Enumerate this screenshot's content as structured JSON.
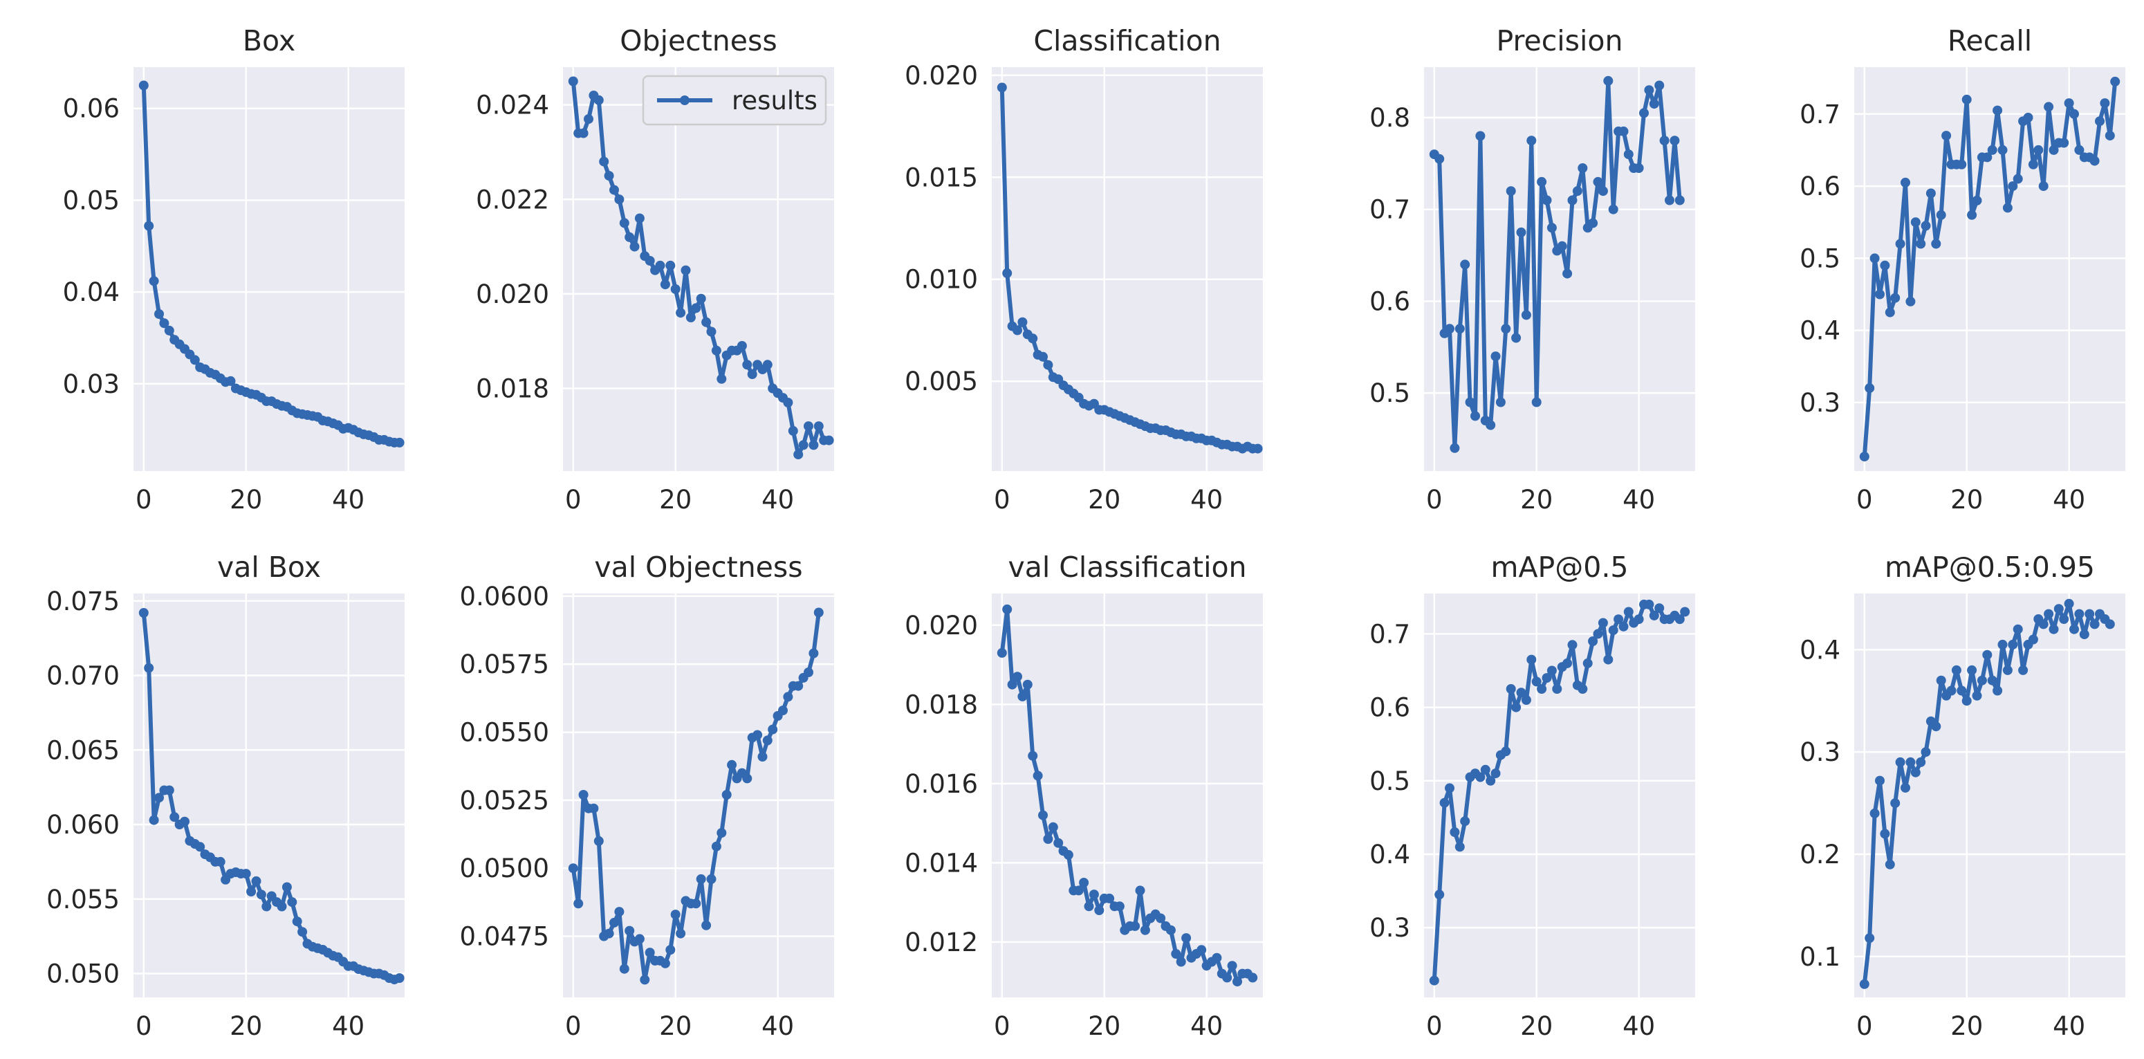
{
  "style": {
    "series_color": "#3369b0",
    "panel_bg": "#eaeaf2",
    "grid_color": "#ffffff",
    "text_color": "#262626"
  },
  "legend": {
    "label": "results",
    "placement": "upper-right of Objectness panel"
  },
  "chart_data": [
    {
      "type": "line",
      "title": "Box",
      "grid": true,
      "xlim": [
        -2,
        51
      ],
      "ylim": [
        0.0205,
        0.0645
      ],
      "xticks": [
        0,
        20,
        40
      ],
      "yticks": [
        0.03,
        0.04,
        0.05,
        0.06
      ],
      "ytick_labels": [
        "0.03",
        "0.04",
        "0.05",
        "0.06"
      ],
      "series": [
        {
          "values": [
            0.0625,
            0.0472,
            0.0412,
            0.0376,
            0.0366,
            0.0358,
            0.0348,
            0.0343,
            0.0338,
            0.0332,
            0.0326,
            0.0318,
            0.0316,
            0.0312,
            0.031,
            0.0306,
            0.0302,
            0.0303,
            0.0295,
            0.0293,
            0.0291,
            0.0289,
            0.0288,
            0.0285,
            0.0281,
            0.0281,
            0.0278,
            0.0276,
            0.0275,
            0.0271,
            0.0268,
            0.0267,
            0.0266,
            0.0265,
            0.0264,
            0.026,
            0.0259,
            0.0257,
            0.0255,
            0.0251,
            0.0252,
            0.025,
            0.0247,
            0.0245,
            0.0244,
            0.0242,
            0.0239,
            0.0239,
            0.0237,
            0.0236,
            0.0236
          ]
        }
      ]
    },
    {
      "type": "line",
      "title": "Objectness",
      "grid": true,
      "legend": true,
      "xlim": [
        -2,
        51
      ],
      "ylim": [
        0.01625,
        0.0248
      ],
      "xticks": [
        0,
        20,
        40
      ],
      "yticks": [
        0.018,
        0.02,
        0.022,
        0.024
      ],
      "ytick_labels": [
        "0.018",
        "0.020",
        "0.022",
        "0.024"
      ],
      "series": [
        {
          "values": [
            0.0245,
            0.0234,
            0.0234,
            0.0237,
            0.0242,
            0.0241,
            0.0228,
            0.0225,
            0.0222,
            0.022,
            0.0215,
            0.0212,
            0.021,
            0.0216,
            0.0208,
            0.0207,
            0.0205,
            0.0206,
            0.0202,
            0.0206,
            0.0201,
            0.0196,
            0.0205,
            0.0195,
            0.0197,
            0.0199,
            0.0194,
            0.0192,
            0.0188,
            0.0182,
            0.0187,
            0.0188,
            0.0188,
            0.0189,
            0.0185,
            0.0183,
            0.0185,
            0.0184,
            0.0185,
            0.018,
            0.0179,
            0.0178,
            0.0177,
            0.0171,
            0.0166,
            0.0168,
            0.0172,
            0.0168,
            0.0172,
            0.0169,
            0.0169
          ]
        }
      ]
    },
    {
      "type": "line",
      "title": "Classification",
      "grid": true,
      "xlim": [
        -2,
        51
      ],
      "ylim": [
        0.0006,
        0.0204
      ],
      "xticks": [
        0,
        20,
        40
      ],
      "yticks": [
        0.005,
        0.01,
        0.015,
        0.02
      ],
      "ytick_labels": [
        "0.005",
        "0.010",
        "0.015",
        "0.020"
      ],
      "series": [
        {
          "values": [
            0.0194,
            0.0103,
            0.0077,
            0.0075,
            0.0079,
            0.0073,
            0.0071,
            0.0063,
            0.0062,
            0.0058,
            0.0052,
            0.0051,
            0.0048,
            0.0046,
            0.0044,
            0.0042,
            0.0039,
            0.0038,
            0.0039,
            0.0036,
            0.0036,
            0.0035,
            0.0034,
            0.0033,
            0.0032,
            0.0031,
            0.003,
            0.0029,
            0.0028,
            0.0027,
            0.0027,
            0.0026,
            0.0026,
            0.0025,
            0.0024,
            0.0024,
            0.0023,
            0.0023,
            0.0022,
            0.0022,
            0.0021,
            0.0021,
            0.002,
            0.0019,
            0.0019,
            0.0018,
            0.0018,
            0.0017,
            0.0018,
            0.0017,
            0.0017
          ]
        }
      ]
    },
    {
      "type": "line",
      "title": "Precision",
      "grid": true,
      "xlim": [
        -2,
        51
      ],
      "ylim": [
        0.415,
        0.855
      ],
      "xticks": [
        0,
        20,
        40
      ],
      "yticks": [
        0.5,
        0.6,
        0.7,
        0.8
      ],
      "ytick_labels": [
        "0.5",
        "0.6",
        "0.7",
        "0.8"
      ],
      "series": [
        {
          "values": [
            0.76,
            0.755,
            0.565,
            0.57,
            0.44,
            0.57,
            0.64,
            0.49,
            0.475,
            0.78,
            0.47,
            0.465,
            0.54,
            0.49,
            0.57,
            0.72,
            0.56,
            0.675,
            0.585,
            0.775,
            0.49,
            0.73,
            0.71,
            0.68,
            0.655,
            0.66,
            0.63,
            0.71,
            0.72,
            0.745,
            0.68,
            0.685,
            0.73,
            0.72,
            0.84,
            0.7,
            0.785,
            0.785,
            0.76,
            0.745,
            0.745,
            0.805,
            0.83,
            0.815,
            0.835,
            0.775,
            0.71,
            0.775,
            0.71
          ]
        }
      ]
    },
    {
      "type": "line",
      "title": "Recall",
      "grid": true,
      "xlim": [
        -2,
        51
      ],
      "ylim": [
        0.205,
        0.765
      ],
      "xticks": [
        0,
        20,
        40
      ],
      "yticks": [
        0.3,
        0.4,
        0.5,
        0.6,
        0.7
      ],
      "ytick_labels": [
        "0.3",
        "0.4",
        "0.5",
        "0.6",
        "0.7"
      ],
      "series": [
        {
          "values": [
            0.225,
            0.32,
            0.5,
            0.45,
            0.49,
            0.425,
            0.445,
            0.52,
            0.605,
            0.44,
            0.55,
            0.52,
            0.545,
            0.59,
            0.52,
            0.56,
            0.67,
            0.63,
            0.63,
            0.63,
            0.72,
            0.56,
            0.58,
            0.64,
            0.64,
            0.65,
            0.705,
            0.65,
            0.57,
            0.6,
            0.61,
            0.69,
            0.695,
            0.63,
            0.65,
            0.6,
            0.71,
            0.65,
            0.66,
            0.66,
            0.715,
            0.7,
            0.65,
            0.64,
            0.64,
            0.635,
            0.69,
            0.715,
            0.67,
            0.745
          ]
        }
      ]
    },
    {
      "type": "line",
      "title": "val Box",
      "grid": true,
      "xlim": [
        -2,
        51
      ],
      "ylim": [
        0.0484,
        0.0755
      ],
      "xticks": [
        0,
        20,
        40
      ],
      "yticks": [
        0.05,
        0.055,
        0.06,
        0.065,
        0.07,
        0.075
      ],
      "ytick_labels": [
        "0.050",
        "0.055",
        "0.060",
        "0.065",
        "0.070",
        "0.075"
      ],
      "series": [
        {
          "values": [
            0.0742,
            0.0705,
            0.0603,
            0.0618,
            0.0623,
            0.0623,
            0.0605,
            0.06,
            0.0602,
            0.0589,
            0.0587,
            0.0585,
            0.058,
            0.0578,
            0.0575,
            0.0575,
            0.0563,
            0.0567,
            0.0568,
            0.0567,
            0.0567,
            0.0555,
            0.0562,
            0.0553,
            0.0545,
            0.0552,
            0.0548,
            0.0545,
            0.0558,
            0.0548,
            0.0535,
            0.0528,
            0.052,
            0.0518,
            0.0517,
            0.0516,
            0.0514,
            0.0512,
            0.0511,
            0.0508,
            0.0505,
            0.0505,
            0.0503,
            0.0502,
            0.0501,
            0.05,
            0.05,
            0.0499,
            0.0497,
            0.0496,
            0.0497
          ]
        }
      ]
    },
    {
      "type": "line",
      "title": "val Objectness",
      "grid": true,
      "xlim": [
        -2,
        51
      ],
      "ylim": [
        0.04525,
        0.0601
      ],
      "xticks": [
        0,
        20,
        40
      ],
      "yticks": [
        0.0475,
        0.05,
        0.0525,
        0.055,
        0.0575,
        0.06
      ],
      "ytick_labels": [
        "0.0475",
        "0.0500",
        "0.0525",
        "0.0550",
        "0.0575",
        "0.0600"
      ],
      "series": [
        {
          "values": [
            0.05,
            0.0487,
            0.0527,
            0.0522,
            0.0522,
            0.051,
            0.0475,
            0.0476,
            0.048,
            0.0484,
            0.0463,
            0.0477,
            0.0473,
            0.0474,
            0.0459,
            0.0469,
            0.0466,
            0.0466,
            0.0465,
            0.047,
            0.0483,
            0.0476,
            0.0488,
            0.0487,
            0.0487,
            0.0496,
            0.0479,
            0.0496,
            0.0508,
            0.0513,
            0.0527,
            0.0538,
            0.0533,
            0.0535,
            0.0533,
            0.0548,
            0.0549,
            0.0541,
            0.0547,
            0.0551,
            0.0556,
            0.0558,
            0.0563,
            0.0567,
            0.0567,
            0.057,
            0.0572,
            0.0579,
            0.0594
          ]
        }
      ]
    },
    {
      "type": "line",
      "title": "val Classification",
      "grid": true,
      "xlim": [
        -2,
        51
      ],
      "ylim": [
        0.0106,
        0.0208
      ],
      "xticks": [
        0,
        20,
        40
      ],
      "yticks": [
        0.012,
        0.014,
        0.016,
        0.018,
        0.02
      ],
      "ytick_labels": [
        "0.012",
        "0.014",
        "0.016",
        "0.018",
        "0.020"
      ],
      "series": [
        {
          "values": [
            0.0193,
            0.0204,
            0.0185,
            0.0187,
            0.0182,
            0.0185,
            0.0167,
            0.0162,
            0.0152,
            0.0146,
            0.0149,
            0.0145,
            0.0143,
            0.0142,
            0.0133,
            0.0133,
            0.0135,
            0.0129,
            0.0132,
            0.0128,
            0.0131,
            0.0131,
            0.0129,
            0.0129,
            0.0123,
            0.0124,
            0.0124,
            0.0133,
            0.0123,
            0.0126,
            0.0127,
            0.0126,
            0.0124,
            0.0123,
            0.0117,
            0.0115,
            0.0121,
            0.0116,
            0.0117,
            0.0118,
            0.0114,
            0.0115,
            0.0116,
            0.0112,
            0.0111,
            0.0114,
            0.011,
            0.0112,
            0.0112,
            0.0111
          ]
        }
      ]
    },
    {
      "type": "line",
      "title": "mAP@0.5",
      "grid": true,
      "xlim": [
        -2,
        51
      ],
      "ylim": [
        0.205,
        0.755
      ],
      "xticks": [
        0,
        20,
        40
      ],
      "yticks": [
        0.3,
        0.4,
        0.5,
        0.6,
        0.7
      ],
      "ytick_labels": [
        "0.3",
        "0.4",
        "0.5",
        "0.6",
        "0.7"
      ],
      "series": [
        {
          "values": [
            0.228,
            0.345,
            0.47,
            0.49,
            0.43,
            0.41,
            0.445,
            0.505,
            0.51,
            0.505,
            0.515,
            0.5,
            0.51,
            0.535,
            0.54,
            0.625,
            0.6,
            0.62,
            0.61,
            0.665,
            0.635,
            0.625,
            0.64,
            0.65,
            0.625,
            0.655,
            0.66,
            0.685,
            0.63,
            0.625,
            0.66,
            0.69,
            0.7,
            0.715,
            0.665,
            0.705,
            0.72,
            0.71,
            0.73,
            0.715,
            0.72,
            0.74,
            0.74,
            0.725,
            0.735,
            0.72,
            0.72,
            0.725,
            0.72,
            0.73
          ]
        }
      ]
    },
    {
      "type": "line",
      "title": "mAP@0.5:0.95",
      "grid": true,
      "xlim": [
        -2,
        51
      ],
      "ylim": [
        0.06,
        0.455
      ],
      "xticks": [
        0,
        20,
        40
      ],
      "yticks": [
        0.1,
        0.2,
        0.3,
        0.4
      ],
      "ytick_labels": [
        "0.1",
        "0.2",
        "0.3",
        "0.4"
      ],
      "series": [
        {
          "values": [
            0.073,
            0.118,
            0.24,
            0.272,
            0.22,
            0.19,
            0.25,
            0.29,
            0.265,
            0.29,
            0.28,
            0.29,
            0.3,
            0.33,
            0.325,
            0.37,
            0.355,
            0.36,
            0.38,
            0.36,
            0.35,
            0.38,
            0.355,
            0.37,
            0.395,
            0.37,
            0.36,
            0.405,
            0.38,
            0.405,
            0.42,
            0.38,
            0.405,
            0.41,
            0.43,
            0.425,
            0.435,
            0.42,
            0.44,
            0.43,
            0.445,
            0.42,
            0.435,
            0.415,
            0.435,
            0.425,
            0.435,
            0.43,
            0.425
          ]
        }
      ]
    }
  ]
}
